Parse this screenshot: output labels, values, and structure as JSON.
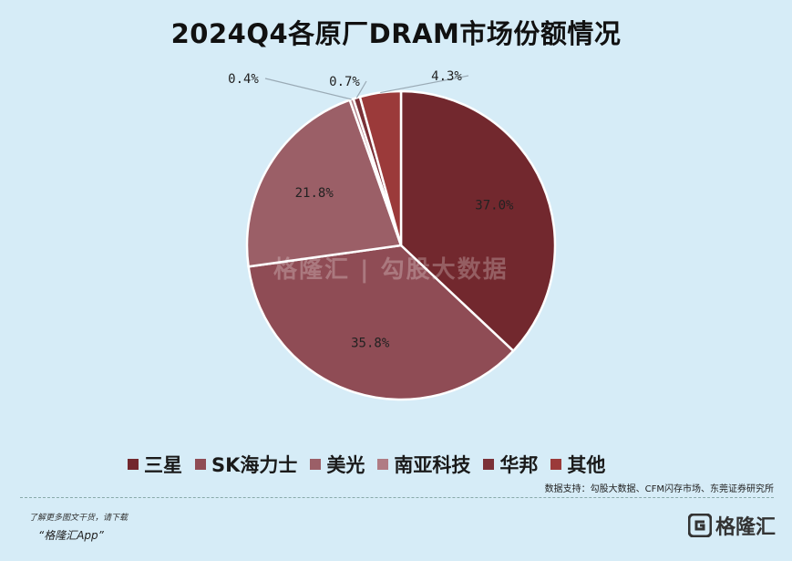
{
  "title": "2024Q4各原厂DRAM市场份额情况",
  "chart_data": {
    "type": "pie",
    "title": "2024Q4各原厂DRAM市场份额情况",
    "slices": [
      {
        "label": "三星",
        "value": 37.0,
        "value_text": "37.0%",
        "color": "#72282e"
      },
      {
        "label": "SK海力士",
        "value": 35.8,
        "value_text": "35.8%",
        "color": "#8f4c55"
      },
      {
        "label": "美光",
        "value": 21.8,
        "value_text": "21.8%",
        "color": "#9b5f67"
      },
      {
        "label": "南亚科技",
        "value": 0.4,
        "value_text": "0.4%",
        "color": "#b07c84"
      },
      {
        "label": "华邦",
        "value": 0.7,
        "value_text": "0.7%",
        "color": "#7b3138"
      },
      {
        "label": "其他",
        "value": 4.3,
        "value_text": "4.3%",
        "color": "#9b3a3a"
      }
    ],
    "legend_position": "bottom"
  },
  "source": "数据支持：勾股大数据、CFM闪存市场、东莞证券研究所",
  "watermark": "格隆汇 | 勾股大数据",
  "footer": {
    "note": "了解更多图文干货，请下载",
    "app": "“格隆汇App”",
    "logo_text": "格隆汇"
  }
}
